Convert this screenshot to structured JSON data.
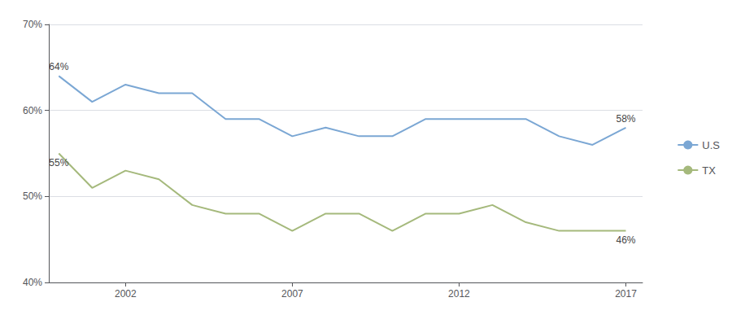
{
  "chart_data": {
    "type": "line",
    "x": [
      2000,
      2001,
      2002,
      2003,
      2004,
      2005,
      2006,
      2007,
      2008,
      2009,
      2010,
      2011,
      2012,
      2013,
      2014,
      2015,
      2016,
      2017
    ],
    "series": [
      {
        "name": "U.S",
        "color": "#7ba7d4",
        "values": [
          64,
          61,
          63,
          62,
          62,
          59,
          59,
          57,
          58,
          57,
          57,
          59,
          59,
          59,
          59,
          57,
          56,
          58
        ]
      },
      {
        "name": "TX",
        "color": "#a5b97c",
        "values": [
          55,
          51,
          53,
          52,
          49,
          48,
          48,
          46,
          48,
          48,
          46,
          48,
          48,
          49,
          47,
          46,
          46,
          46
        ]
      }
    ],
    "xlim": [
      1999.7,
      2017.5
    ],
    "xticks": [
      2002,
      2007,
      2012,
      2017
    ],
    "ylim": [
      40,
      70
    ],
    "yticks": [
      {
        "value": 40,
        "label": "40%"
      },
      {
        "value": 50,
        "label": "50%"
      },
      {
        "value": 60,
        "label": "60%"
      },
      {
        "value": 70,
        "label": "70%"
      }
    ],
    "grid": true,
    "legend": "right",
    "annotations": [
      {
        "text": "64%",
        "x": 2000,
        "y": 64
      },
      {
        "text": "58%",
        "x": 2017,
        "y": 58
      },
      {
        "text": "55%",
        "x": 2000,
        "y": 55
      },
      {
        "text": "46%",
        "x": 2017,
        "y": 46
      }
    ]
  }
}
